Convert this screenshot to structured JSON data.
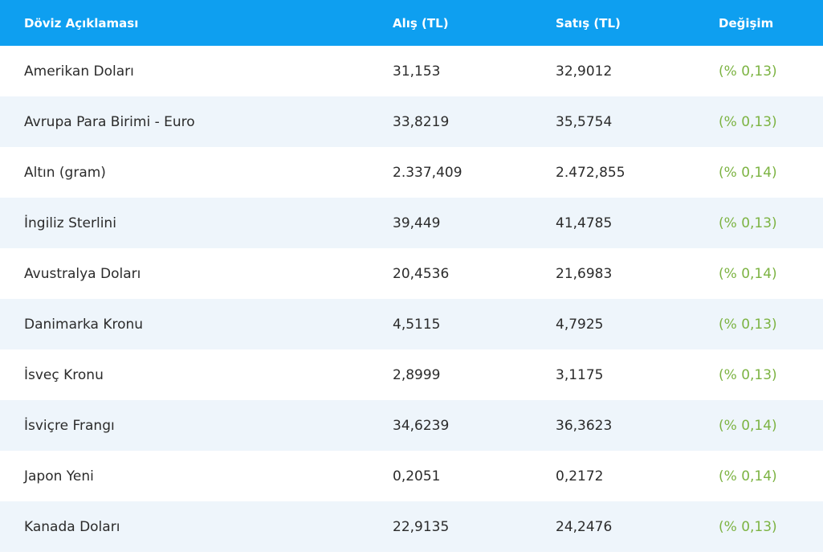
{
  "header": {
    "name": "Döviz Açıklaması",
    "buy": "Alış (TL)",
    "sell": "Satış (TL)",
    "change": "Değişim"
  },
  "colors": {
    "header_bg": "#0e9ff0",
    "stripe_bg": "#eef5fb",
    "change_text": "#7cb342"
  },
  "rows": [
    {
      "name": "Amerikan Doları",
      "buy": "31,153",
      "sell": "32,9012",
      "change": "(% 0,13)"
    },
    {
      "name": "Avrupa Para Birimi - Euro",
      "buy": "33,8219",
      "sell": "35,5754",
      "change": "(% 0,13)"
    },
    {
      "name": "Altın (gram)",
      "buy": "2.337,409",
      "sell": "2.472,855",
      "change": "(% 0,14)"
    },
    {
      "name": "İngiliz Sterlini",
      "buy": "39,449",
      "sell": "41,4785",
      "change": "(% 0,13)"
    },
    {
      "name": "Avustralya Doları",
      "buy": "20,4536",
      "sell": "21,6983",
      "change": "(% 0,14)"
    },
    {
      "name": "Danimarka Kronu",
      "buy": "4,5115",
      "sell": "4,7925",
      "change": "(% 0,13)"
    },
    {
      "name": "İsveç Kronu",
      "buy": "2,8999",
      "sell": "3,1175",
      "change": "(% 0,13)"
    },
    {
      "name": "İsviçre Frangı",
      "buy": "34,6239",
      "sell": "36,3623",
      "change": "(% 0,14)"
    },
    {
      "name": "Japon Yeni",
      "buy": "0,2051",
      "sell": "0,2172",
      "change": "(% 0,14)"
    },
    {
      "name": "Kanada Doları",
      "buy": "22,9135",
      "sell": "24,2476",
      "change": "(% 0,13)"
    }
  ]
}
